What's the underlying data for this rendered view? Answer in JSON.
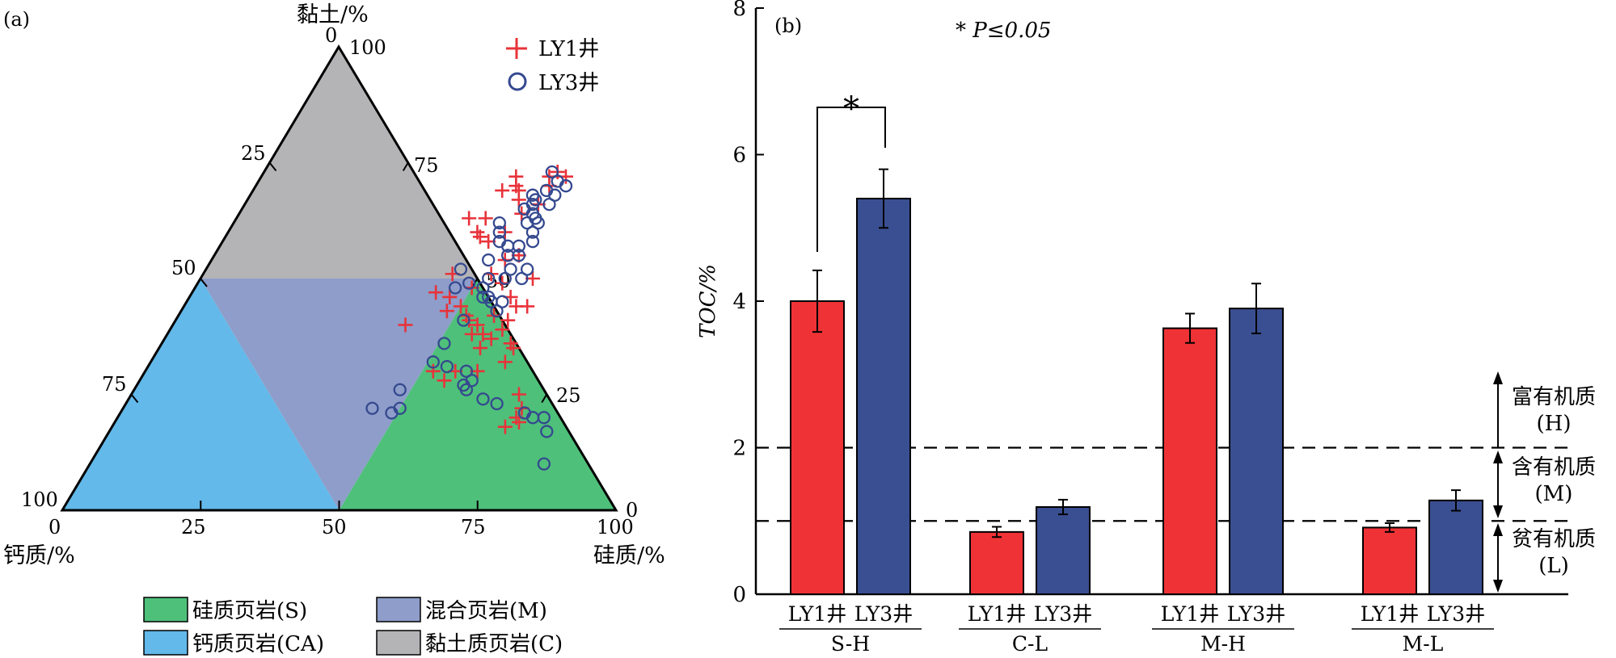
{
  "chart_data": [
    {
      "panel_label": "(a)",
      "type": "scatter",
      "subtype": "ternary",
      "axes": {
        "clay": {
          "label": "黏土/%",
          "ticks": [
            "0",
            "25",
            "50",
            "75",
            "100"
          ]
        },
        "calcium": {
          "label": "钙质/%",
          "ticks": [
            "0",
            "25",
            "50",
            "75",
            "100"
          ]
        },
        "silica": {
          "label": "硅质/%",
          "ticks": [
            "0",
            "25",
            "50",
            "75",
            "100"
          ]
        },
        "right_edge_ticks": [
          "100",
          "75",
          "50",
          "25",
          "0"
        ],
        "left_edge_ticks": [
          "25",
          "50",
          "75",
          "100"
        ]
      },
      "regions": [
        {
          "name": "硅质页岩(S)",
          "color": "#4ec07a"
        },
        {
          "name": "混合页岩(M)",
          "color": "#8e9dc9"
        },
        {
          "name": "钙质页岩(CA)",
          "color": "#63b9ea"
        },
        {
          "name": "黏土质页岩(C)",
          "color": "#b4b4b6"
        }
      ],
      "series": [
        {
          "name": "LY1井",
          "marker": "plus",
          "color": "#e8333a",
          "points_clay_silica": [
            [
              70,
              47
            ],
            [
              69,
              45
            ],
            [
              72,
              46
            ],
            [
              69,
              48
            ],
            [
              63,
              45
            ],
            [
              63,
              42
            ],
            [
              60,
              50
            ],
            [
              59,
              46
            ],
            [
              58,
              48
            ],
            [
              67,
              49
            ],
            [
              72,
              52
            ],
            [
              73,
              53
            ],
            [
              72,
              55
            ],
            [
              70,
              53
            ],
            [
              64,
              51
            ],
            [
              66,
              53
            ],
            [
              60,
              45
            ],
            [
              51,
              45
            ],
            [
              48,
              50
            ],
            [
              51,
              52
            ],
            [
              54,
              53
            ],
            [
              50,
              60
            ],
            [
              55,
              55
            ],
            [
              49,
              55
            ],
            [
              40,
              42
            ],
            [
              46,
              58
            ],
            [
              41,
              60
            ],
            [
              44,
              62
            ],
            [
              39,
              60
            ],
            [
              44,
              50
            ],
            [
              42,
              52
            ],
            [
              40,
              55
            ],
            [
              41,
              53
            ],
            [
              42,
              57
            ],
            [
              44,
              60
            ],
            [
              38,
              57
            ],
            [
              30,
              56
            ],
            [
              35,
              58
            ],
            [
              28,
              55
            ],
            [
              30,
              52
            ],
            [
              35,
              64
            ],
            [
              36,
              63
            ],
            [
              30,
              60
            ],
            [
              32,
              64
            ],
            [
              25,
              70
            ],
            [
              20,
              72
            ],
            [
              19,
              73
            ],
            [
              22,
              72
            ],
            [
              18,
              71
            ],
            [
              43,
              48
            ],
            [
              38,
              55
            ],
            [
              37,
              59
            ],
            [
              46,
              47
            ],
            [
              47,
              44
            ]
          ]
        },
        {
          "name": "LY3井",
          "marker": "circle",
          "color": "#35498f",
          "points_clay_silica": [
            [
              73,
              52
            ],
            [
              71,
              54
            ],
            [
              69,
              53
            ],
            [
              67,
              52
            ],
            [
              68,
              51
            ],
            [
              65,
              51
            ],
            [
              63,
              54
            ],
            [
              64,
              53
            ],
            [
              66,
              52
            ],
            [
              66,
              55
            ],
            [
              68,
              55
            ],
            [
              70,
              56
            ],
            [
              62,
              55
            ],
            [
              62,
              53
            ],
            [
              62,
              48
            ],
            [
              60,
              49
            ],
            [
              58,
              50
            ],
            [
              57,
              52
            ],
            [
              57,
              54
            ],
            [
              60,
              55
            ],
            [
              58,
              56
            ],
            [
              55,
              53
            ],
            [
              55,
              55
            ],
            [
              52,
              58
            ],
            [
              52,
              55
            ],
            [
              54,
              50
            ],
            [
              50,
              55
            ],
            [
              50,
              58
            ],
            [
              50,
              52
            ],
            [
              48,
              52
            ],
            [
              52,
              46
            ],
            [
              48,
              47
            ],
            [
              49,
              49
            ],
            [
              46,
              53
            ],
            [
              46,
              54
            ],
            [
              45,
              57
            ],
            [
              45,
              55
            ],
            [
              43,
              57
            ],
            [
              41,
              52
            ],
            [
              36,
              51
            ],
            [
              31,
              54
            ],
            [
              32,
              51
            ],
            [
              26,
              48
            ],
            [
              22,
              50
            ],
            [
              21,
              49
            ],
            [
              22,
              45
            ],
            [
              27,
              59
            ],
            [
              26,
              60
            ],
            [
              28,
              60
            ],
            [
              23,
              67
            ],
            [
              20,
              75
            ],
            [
              20,
              77
            ],
            [
              17,
              79
            ],
            [
              10,
              82
            ],
            [
              21,
              73
            ],
            [
              24,
              64
            ],
            [
              30,
              58
            ]
          ]
        }
      ]
    },
    {
      "panel_label": "(b)",
      "type": "bar",
      "annotation": "* P≤0.05",
      "significance_mark": "*",
      "ylabel": "TOC/%",
      "ylim": [
        0,
        8
      ],
      "yticks": [
        0,
        2,
        4,
        6,
        8
      ],
      "groups": [
        "S-H",
        "C-L",
        "M-H",
        "M-L"
      ],
      "bar_labels": [
        "LY1井",
        "LY3井"
      ],
      "series": [
        {
          "name": "LY1井",
          "color": "#ef3236",
          "values": [
            4.0,
            0.85,
            3.63,
            0.91
          ],
          "errors": [
            0.42,
            0.07,
            0.2,
            0.06
          ]
        },
        {
          "name": "LY3井",
          "color": "#3a4f91",
          "values": [
            5.4,
            1.19,
            3.9,
            1.28
          ],
          "errors": [
            0.4,
            0.1,
            0.34,
            0.14
          ]
        }
      ],
      "thresholds": [
        2,
        1
      ],
      "zones": [
        {
          "line1": "富有机质",
          "line2": "(H)"
        },
        {
          "line1": "含有机质",
          "line2": "(M)"
        },
        {
          "line1": "贫有机质",
          "line2": "(L)"
        }
      ]
    }
  ]
}
